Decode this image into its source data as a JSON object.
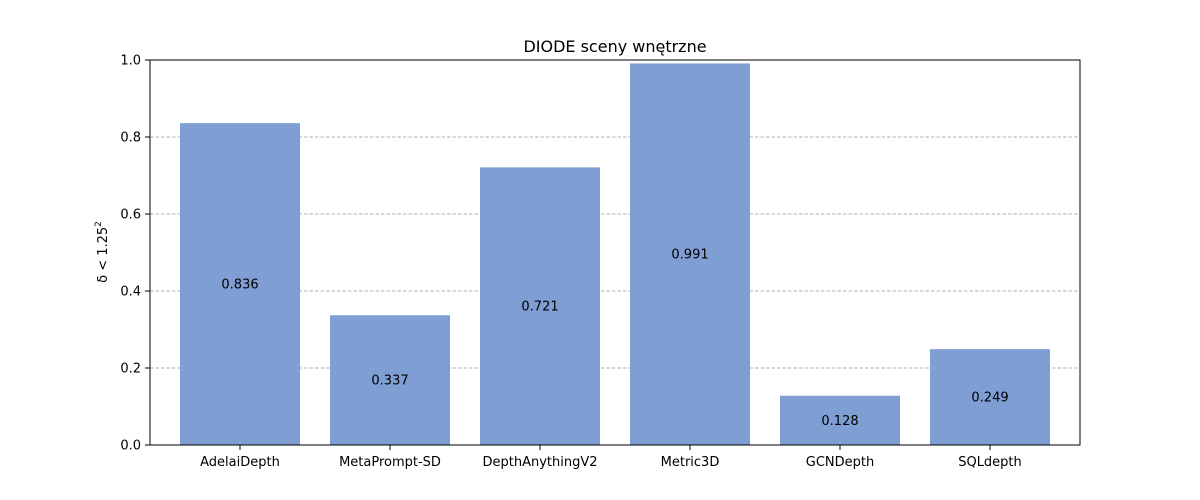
{
  "chart_data": {
    "type": "bar",
    "title": "DIODE sceny wnętrzne",
    "xlabel": "",
    "ylabel_base": "δ < 1.25",
    "ylabel_superscript": "2",
    "categories": [
      "AdelaiDepth",
      "MetaPrompt-SD",
      "DepthAnythingV2",
      "Metric3D",
      "GCNDepth",
      "SQLdepth"
    ],
    "values": [
      0.836,
      0.337,
      0.721,
      0.991,
      0.128,
      0.249
    ],
    "value_labels": [
      "0.836",
      "0.337",
      "0.721",
      "0.991",
      "0.128",
      "0.249"
    ],
    "ylim": [
      0.0,
      1.0
    ],
    "yticks": [
      0.0,
      0.2,
      0.4,
      0.6,
      0.8,
      1.0
    ],
    "ytick_labels": [
      "0.0",
      "0.2",
      "0.4",
      "0.6",
      "0.8",
      "1.0"
    ],
    "grid": "y-dashed",
    "bar_color": "#7f9ed3",
    "grid_color": "#b0b0b0"
  }
}
